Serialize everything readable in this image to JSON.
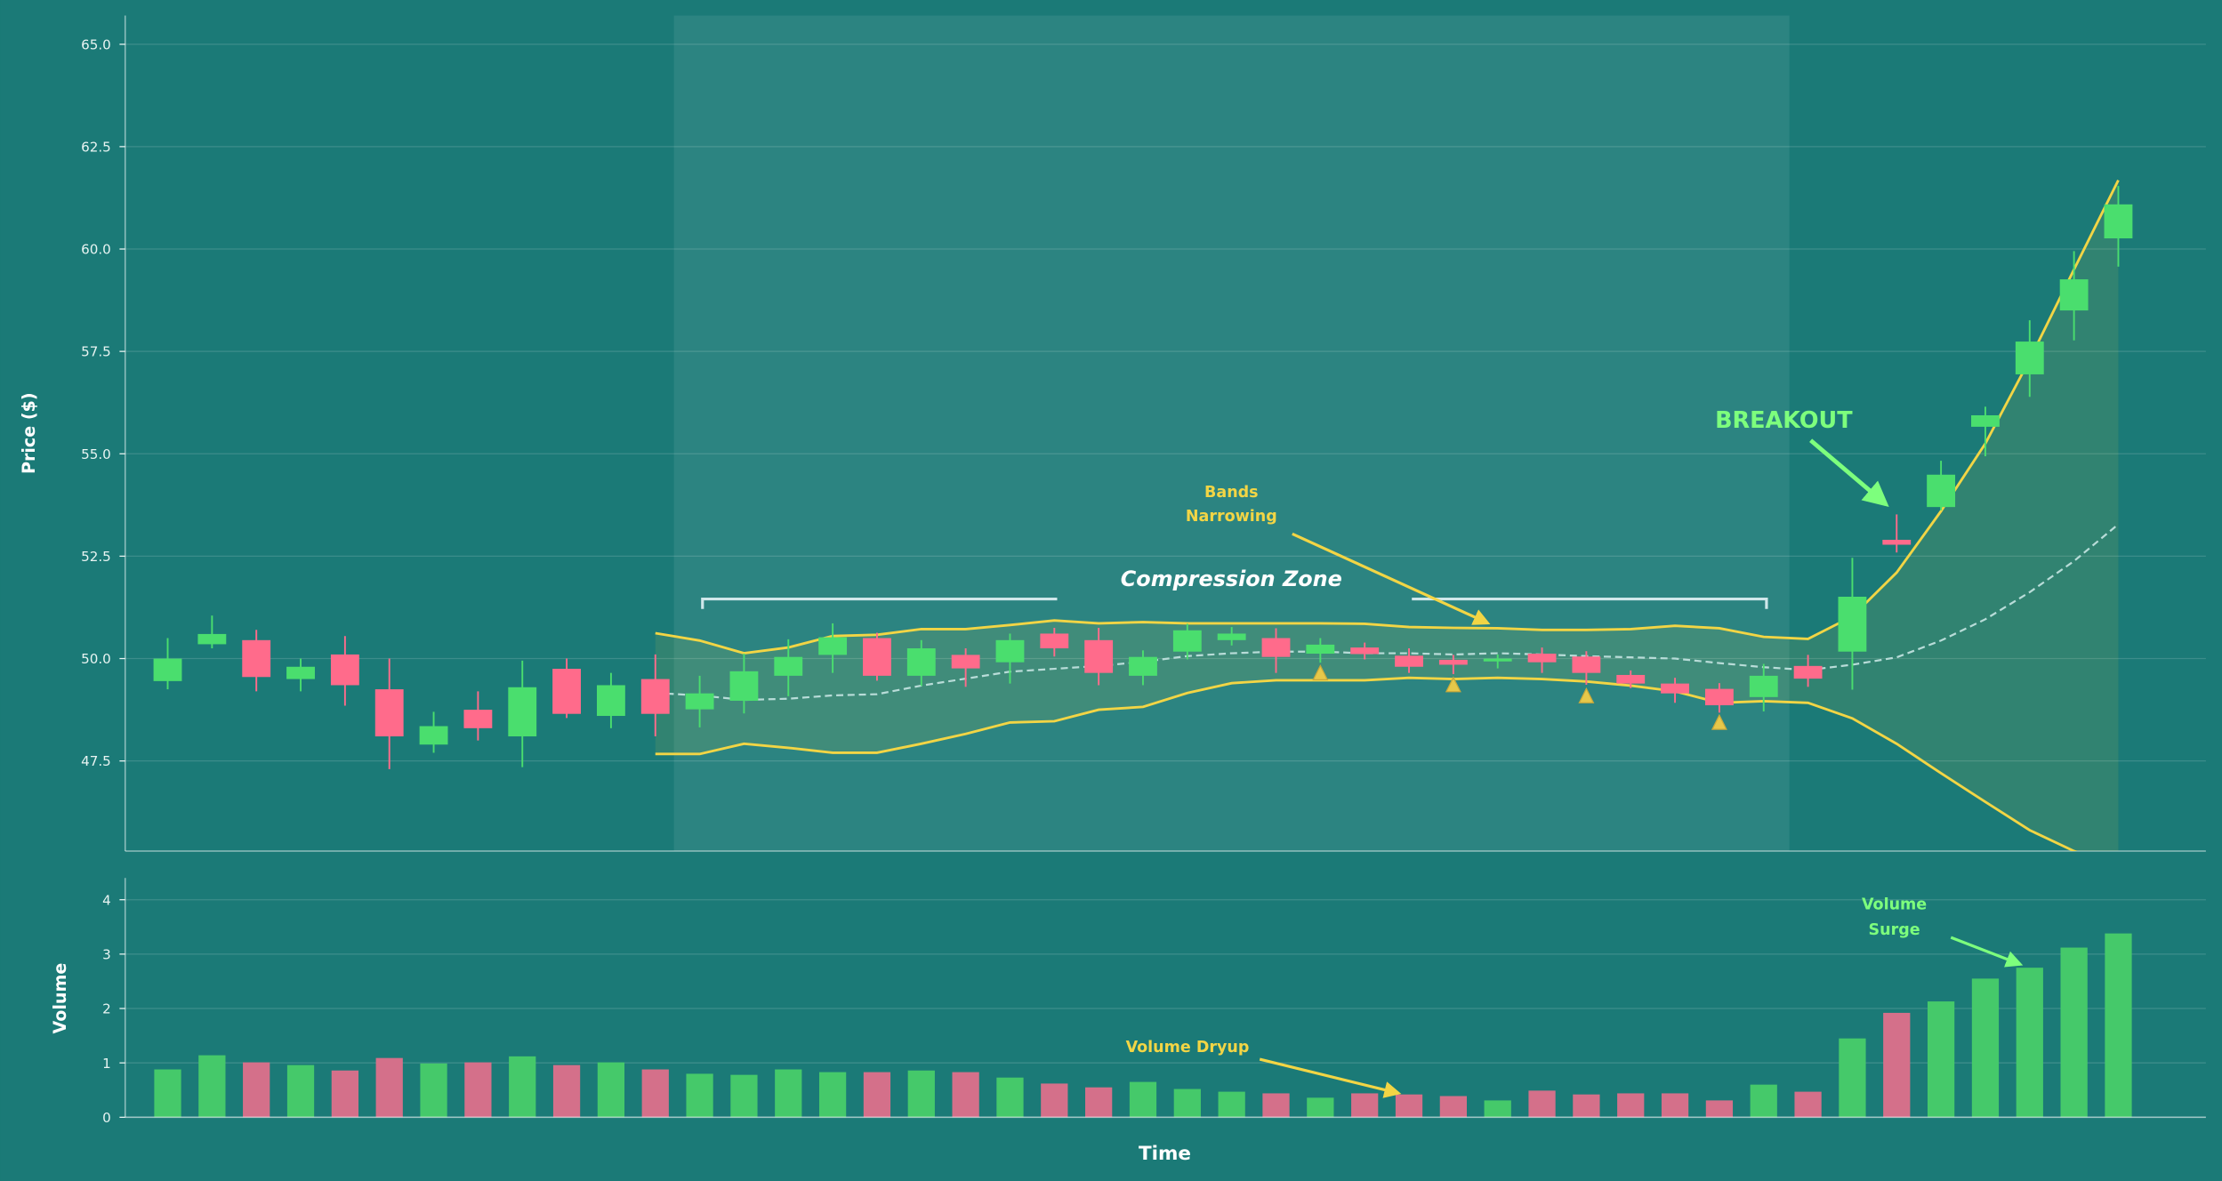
{
  "chart_data": [
    {
      "type": "candlestick",
      "ylabel": "Price ($)",
      "ylim": [
        45.3,
        65.7
      ],
      "yticks": [
        "47.5",
        "50.0",
        "52.5",
        "55.0",
        "57.5",
        "60.0",
        "62.5",
        "65.0"
      ],
      "grid": true,
      "candles_ohlc": [
        [
          49.45,
          50.5,
          49.25,
          50.0
        ],
        [
          50.35,
          51.05,
          50.25,
          50.6
        ],
        [
          50.45,
          50.7,
          49.2,
          49.55
        ],
        [
          49.5,
          50.0,
          49.2,
          49.8
        ],
        [
          50.1,
          50.55,
          48.85,
          49.35
        ],
        [
          49.25,
          50.0,
          47.3,
          48.1
        ],
        [
          47.9,
          48.7,
          47.7,
          48.35
        ],
        [
          48.75,
          49.2,
          48.0,
          48.3
        ],
        [
          48.1,
          49.95,
          47.35,
          49.3
        ],
        [
          49.75,
          50.0,
          48.55,
          48.65
        ],
        [
          48.6,
          49.65,
          48.3,
          49.35
        ],
        [
          49.5,
          50.1,
          48.1,
          48.65
        ],
        [
          48.76,
          49.58,
          48.32,
          49.15
        ],
        [
          48.97,
          50.12,
          48.66,
          49.69
        ],
        [
          49.58,
          50.47,
          49.08,
          50.04
        ],
        [
          50.09,
          50.86,
          49.65,
          50.52
        ],
        [
          50.5,
          50.63,
          49.46,
          49.58
        ],
        [
          49.58,
          50.45,
          49.33,
          50.25
        ],
        [
          50.09,
          50.25,
          49.31,
          49.76
        ],
        [
          49.91,
          50.61,
          49.39,
          50.45
        ],
        [
          50.61,
          50.75,
          50.05,
          50.25
        ],
        [
          50.45,
          50.75,
          49.35,
          49.65
        ],
        [
          49.58,
          50.2,
          49.35,
          50.04
        ],
        [
          50.17,
          50.85,
          49.98,
          50.69
        ],
        [
          50.45,
          50.77,
          50.32,
          50.61
        ],
        [
          50.5,
          50.74,
          49.65,
          50.04
        ],
        [
          50.12,
          50.5,
          49.9,
          50.34
        ],
        [
          50.27,
          50.39,
          49.98,
          50.11
        ],
        [
          50.07,
          50.25,
          49.65,
          49.8
        ],
        [
          49.97,
          50.09,
          49.62,
          49.85
        ],
        [
          49.93,
          50.1,
          49.76,
          50.0
        ],
        [
          50.12,
          50.27,
          49.65,
          49.91
        ],
        [
          50.05,
          50.18,
          49.36,
          49.65
        ],
        [
          49.6,
          49.71,
          49.28,
          49.39
        ],
        [
          49.39,
          49.53,
          48.92,
          49.15
        ],
        [
          49.26,
          49.4,
          48.68,
          48.86
        ],
        [
          49.06,
          49.87,
          48.71,
          49.58
        ],
        [
          49.82,
          50.09,
          49.31,
          49.51
        ],
        [
          50.17,
          52.46,
          49.24,
          51.51
        ],
        [
          52.9,
          53.52,
          52.59,
          52.78
        ],
        [
          53.7,
          54.83,
          53.62,
          54.49
        ],
        [
          55.66,
          56.15,
          54.94,
          55.94
        ],
        [
          56.94,
          58.26,
          56.39,
          57.74
        ],
        [
          58.5,
          59.95,
          57.77,
          59.26
        ],
        [
          60.26,
          61.54,
          59.57,
          61.09
        ]
      ],
      "bollinger_start_index": 11,
      "bollinger_upper": [
        50.62,
        50.44,
        50.13,
        50.27,
        50.55,
        50.58,
        50.72,
        50.72,
        50.82,
        50.93,
        50.86,
        50.89,
        50.86,
        50.86,
        50.86,
        50.86,
        50.85,
        50.77,
        50.75,
        50.74,
        50.7,
        50.7,
        50.72,
        50.8,
        50.74,
        50.53,
        50.48,
        51.03,
        52.1,
        53.6,
        55.25,
        57.3,
        59.5,
        61.68
      ],
      "bollinger_middle": [
        49.16,
        49.1,
        48.99,
        49.02,
        49.1,
        49.13,
        49.34,
        49.51,
        49.68,
        49.75,
        49.82,
        49.92,
        50.06,
        50.13,
        50.17,
        50.17,
        50.13,
        50.13,
        50.1,
        50.13,
        50.1,
        50.06,
        50.03,
        50.0,
        49.89,
        49.79,
        49.72,
        49.85,
        50.03,
        50.44,
        50.96,
        51.62,
        52.38,
        53.28
      ],
      "bollinger_lower": [
        47.67,
        47.67,
        47.92,
        47.82,
        47.7,
        47.7,
        47.92,
        48.16,
        48.44,
        48.47,
        48.75,
        48.82,
        49.16,
        49.4,
        49.47,
        49.47,
        49.47,
        49.53,
        49.5,
        49.53,
        49.5,
        49.44,
        49.34,
        49.2,
        48.92,
        48.96,
        48.92,
        48.54,
        47.92,
        47.2,
        46.5,
        45.81,
        45.3,
        44.9
      ],
      "squeeze_markers": [
        {
          "index": 26,
          "price": 49.62
        },
        {
          "index": 29,
          "price": 49.33
        },
        {
          "index": 32,
          "price": 49.06
        },
        {
          "index": 35,
          "price": 48.41
        }
      ],
      "compression_zone_index_range": [
        11.5,
        36.5
      ],
      "annotations": {
        "zone": "Compression Zone",
        "bands_line1": "Bands",
        "bands_line2": "Narrowing",
        "breakout": "BREAKOUT"
      }
    },
    {
      "type": "bar",
      "ylabel": "Volume",
      "xlabel": "Time",
      "ylim": [
        0,
        4.4
      ],
      "yticks": [
        "0",
        "1",
        "2",
        "3",
        "4"
      ],
      "values": [
        0.88,
        1.14,
        1.01,
        0.96,
        0.86,
        1.09,
        0.99,
        1.01,
        1.12,
        0.96,
        1.01,
        0.88,
        0.8,
        0.78,
        0.88,
        0.83,
        0.83,
        0.86,
        0.83,
        0.73,
        0.62,
        0.55,
        0.65,
        0.52,
        0.47,
        0.44,
        0.36,
        0.44,
        0.42,
        0.39,
        0.31,
        0.49,
        0.42,
        0.44,
        0.44,
        0.31,
        0.6,
        0.47,
        1.45,
        1.92,
        2.13,
        2.55,
        2.75,
        3.12,
        3.38
      ],
      "annotations": {
        "dryup": "Volume Dryup",
        "surge_line1": "Volume",
        "surge_line2": "Surge"
      }
    }
  ],
  "colors": {
    "background": "#1b7a77",
    "up": "#4ade6e",
    "down": "#ff6b8b",
    "volume_up": "#45c96a",
    "volume_down": "#d4708a",
    "bands": "#f2d545",
    "middle_band": "#b8dcd8",
    "breakout": "#7dff7d",
    "marker": "#e6c84a"
  }
}
